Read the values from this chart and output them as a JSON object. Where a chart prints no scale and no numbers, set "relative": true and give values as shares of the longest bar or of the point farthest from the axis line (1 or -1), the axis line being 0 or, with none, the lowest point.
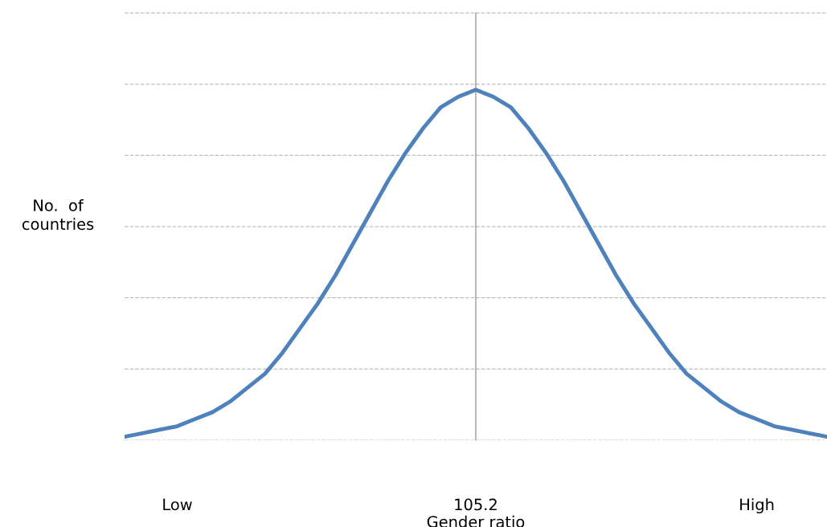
{
  "chart_data": {
    "type": "line",
    "relative": true,
    "xlabel": "Gender ratio",
    "ylabel": "No.  of\ncountries",
    "categories": [
      null,
      null,
      null,
      "Low",
      null,
      null,
      null,
      null,
      null,
      null,
      null,
      null,
      null,
      null,
      null,
      null,
      null,
      null,
      null,
      null,
      "105.2",
      null,
      null,
      null,
      null,
      null,
      null,
      null,
      null,
      null,
      null,
      null,
      null,
      null,
      null,
      null,
      "High",
      null,
      null,
      null,
      null
    ],
    "series": [
      {
        "color": "#4f81bd",
        "values": [
          0.01,
          0.02,
          0.03,
          0.04,
          0.06,
          0.08,
          0.11,
          0.15,
          0.19,
          0.25,
          0.32,
          0.39,
          0.47,
          0.56,
          0.65,
          0.74,
          0.82,
          0.89,
          0.95,
          0.98,
          1.0,
          0.98,
          0.95,
          0.89,
          0.82,
          0.74,
          0.65,
          0.56,
          0.47,
          0.39,
          0.32,
          0.25,
          0.19,
          0.15,
          0.11,
          0.08,
          0.06,
          0.04,
          0.03,
          0.02,
          0.01
        ]
      }
    ],
    "ref_lines": [
      {
        "axis": "x",
        "value": "105.2",
        "color": "#808080"
      }
    ],
    "grid": "y",
    "legend": false,
    "marker": "none",
    "line_style": "solid"
  }
}
